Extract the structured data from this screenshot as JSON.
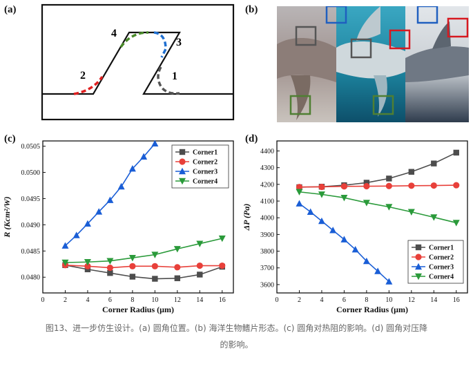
{
  "panels": {
    "a": {
      "label": "(a)",
      "corners": [
        "1",
        "2",
        "3",
        "4"
      ],
      "colors": {
        "c1": "#555555",
        "c2": "#e02020",
        "c3": "#1f6fd0",
        "c4": "#4a8a2a"
      }
    },
    "b": {
      "label": "(b)",
      "box_colors": [
        "#555555",
        "#1f5fbf",
        "#d71920",
        "#4f7f33"
      ]
    },
    "c": {
      "label": "(c)"
    },
    "d": {
      "label": "(d)"
    }
  },
  "chart_data": [
    {
      "type": "line",
      "panel": "c",
      "xlabel": "Corner Radius (μm)",
      "ylabel": "R (Kcm²/W)",
      "xlim": [
        0,
        17
      ],
      "ylim": [
        0.0477,
        0.0506
      ],
      "xticks": [
        0,
        2,
        4,
        6,
        8,
        10,
        12,
        14,
        16
      ],
      "yticks": [
        "0.0480",
        "0.0485",
        "0.0490",
        "0.0495",
        "0.0500",
        "0.0505"
      ],
      "legend": "top-right",
      "series": [
        {
          "name": "Corner1",
          "color": "#4d4d4d",
          "marker": "square",
          "x": [
            2,
            4,
            6,
            8,
            10,
            12,
            14,
            16
          ],
          "y": [
            0.04823,
            0.04815,
            0.04808,
            0.04801,
            0.04797,
            0.04798,
            0.04805,
            0.0482
          ]
        },
        {
          "name": "Corner2",
          "color": "#e8403a",
          "marker": "circle",
          "x": [
            2,
            4,
            6,
            8,
            10,
            12,
            14,
            16
          ],
          "y": [
            0.04823,
            0.04821,
            0.04818,
            0.04821,
            0.04821,
            0.04819,
            0.04822,
            0.04822
          ]
        },
        {
          "name": "Corner3",
          "color": "#1a5ed6",
          "marker": "triangle-up",
          "x": [
            2,
            3,
            4,
            5,
            6,
            7,
            8,
            9,
            10
          ],
          "y": [
            0.0486,
            0.0488,
            0.04902,
            0.04925,
            0.04947,
            0.04973,
            0.05007,
            0.0503,
            0.05055
          ]
        },
        {
          "name": "Corner4",
          "color": "#2a9a3a",
          "marker": "triangle-down",
          "x": [
            2,
            4,
            6,
            8,
            10,
            12,
            14,
            16
          ],
          "y": [
            0.04828,
            0.04829,
            0.04831,
            0.04837,
            0.04843,
            0.04854,
            0.04864,
            0.04874
          ]
        }
      ]
    },
    {
      "type": "line",
      "panel": "d",
      "xlabel": "Corner Radius (μm)",
      "ylabel": "ΔP (Pa)",
      "xlim": [
        0,
        17
      ],
      "ylim": [
        3550,
        4460
      ],
      "xticks": [
        0,
        2,
        4,
        6,
        8,
        10,
        12,
        14,
        16
      ],
      "yticks": [
        "3600",
        "3700",
        "3800",
        "3900",
        "4000",
        "4100",
        "4200",
        "4300",
        "4400"
      ],
      "legend": "bottom-right",
      "series": [
        {
          "name": "Corner1",
          "color": "#4d4d4d",
          "marker": "square",
          "x": [
            2,
            4,
            6,
            8,
            10,
            12,
            14,
            16
          ],
          "y": [
            4183,
            4186,
            4195,
            4210,
            4235,
            4275,
            4325,
            4390
          ]
        },
        {
          "name": "Corner2",
          "color": "#e8403a",
          "marker": "circle",
          "x": [
            2,
            4,
            6,
            8,
            10,
            12,
            14,
            16
          ],
          "y": [
            4184,
            4185,
            4188,
            4189,
            4190,
            4192,
            4193,
            4195
          ]
        },
        {
          "name": "Corner3",
          "color": "#1a5ed6",
          "marker": "triangle-up",
          "x": [
            2,
            3,
            4,
            5,
            6,
            7,
            8,
            9,
            10
          ],
          "y": [
            4085,
            4035,
            3980,
            3925,
            3870,
            3810,
            3740,
            3680,
            3618
          ]
        },
        {
          "name": "Corner4",
          "color": "#2a9a3a",
          "marker": "triangle-down",
          "x": [
            2,
            4,
            6,
            8,
            10,
            12,
            14,
            16
          ],
          "y": [
            4155,
            4140,
            4120,
            4090,
            4065,
            4035,
            4003,
            3970
          ]
        }
      ]
    }
  ],
  "caption": {
    "line1": "图13、进一步仿生设计。(a) 圆角位置。(b) 海洋生物鳍片形态。(c) 圆角对热阻的影响。(d) 圆角对压降",
    "line2": "的影响。"
  }
}
